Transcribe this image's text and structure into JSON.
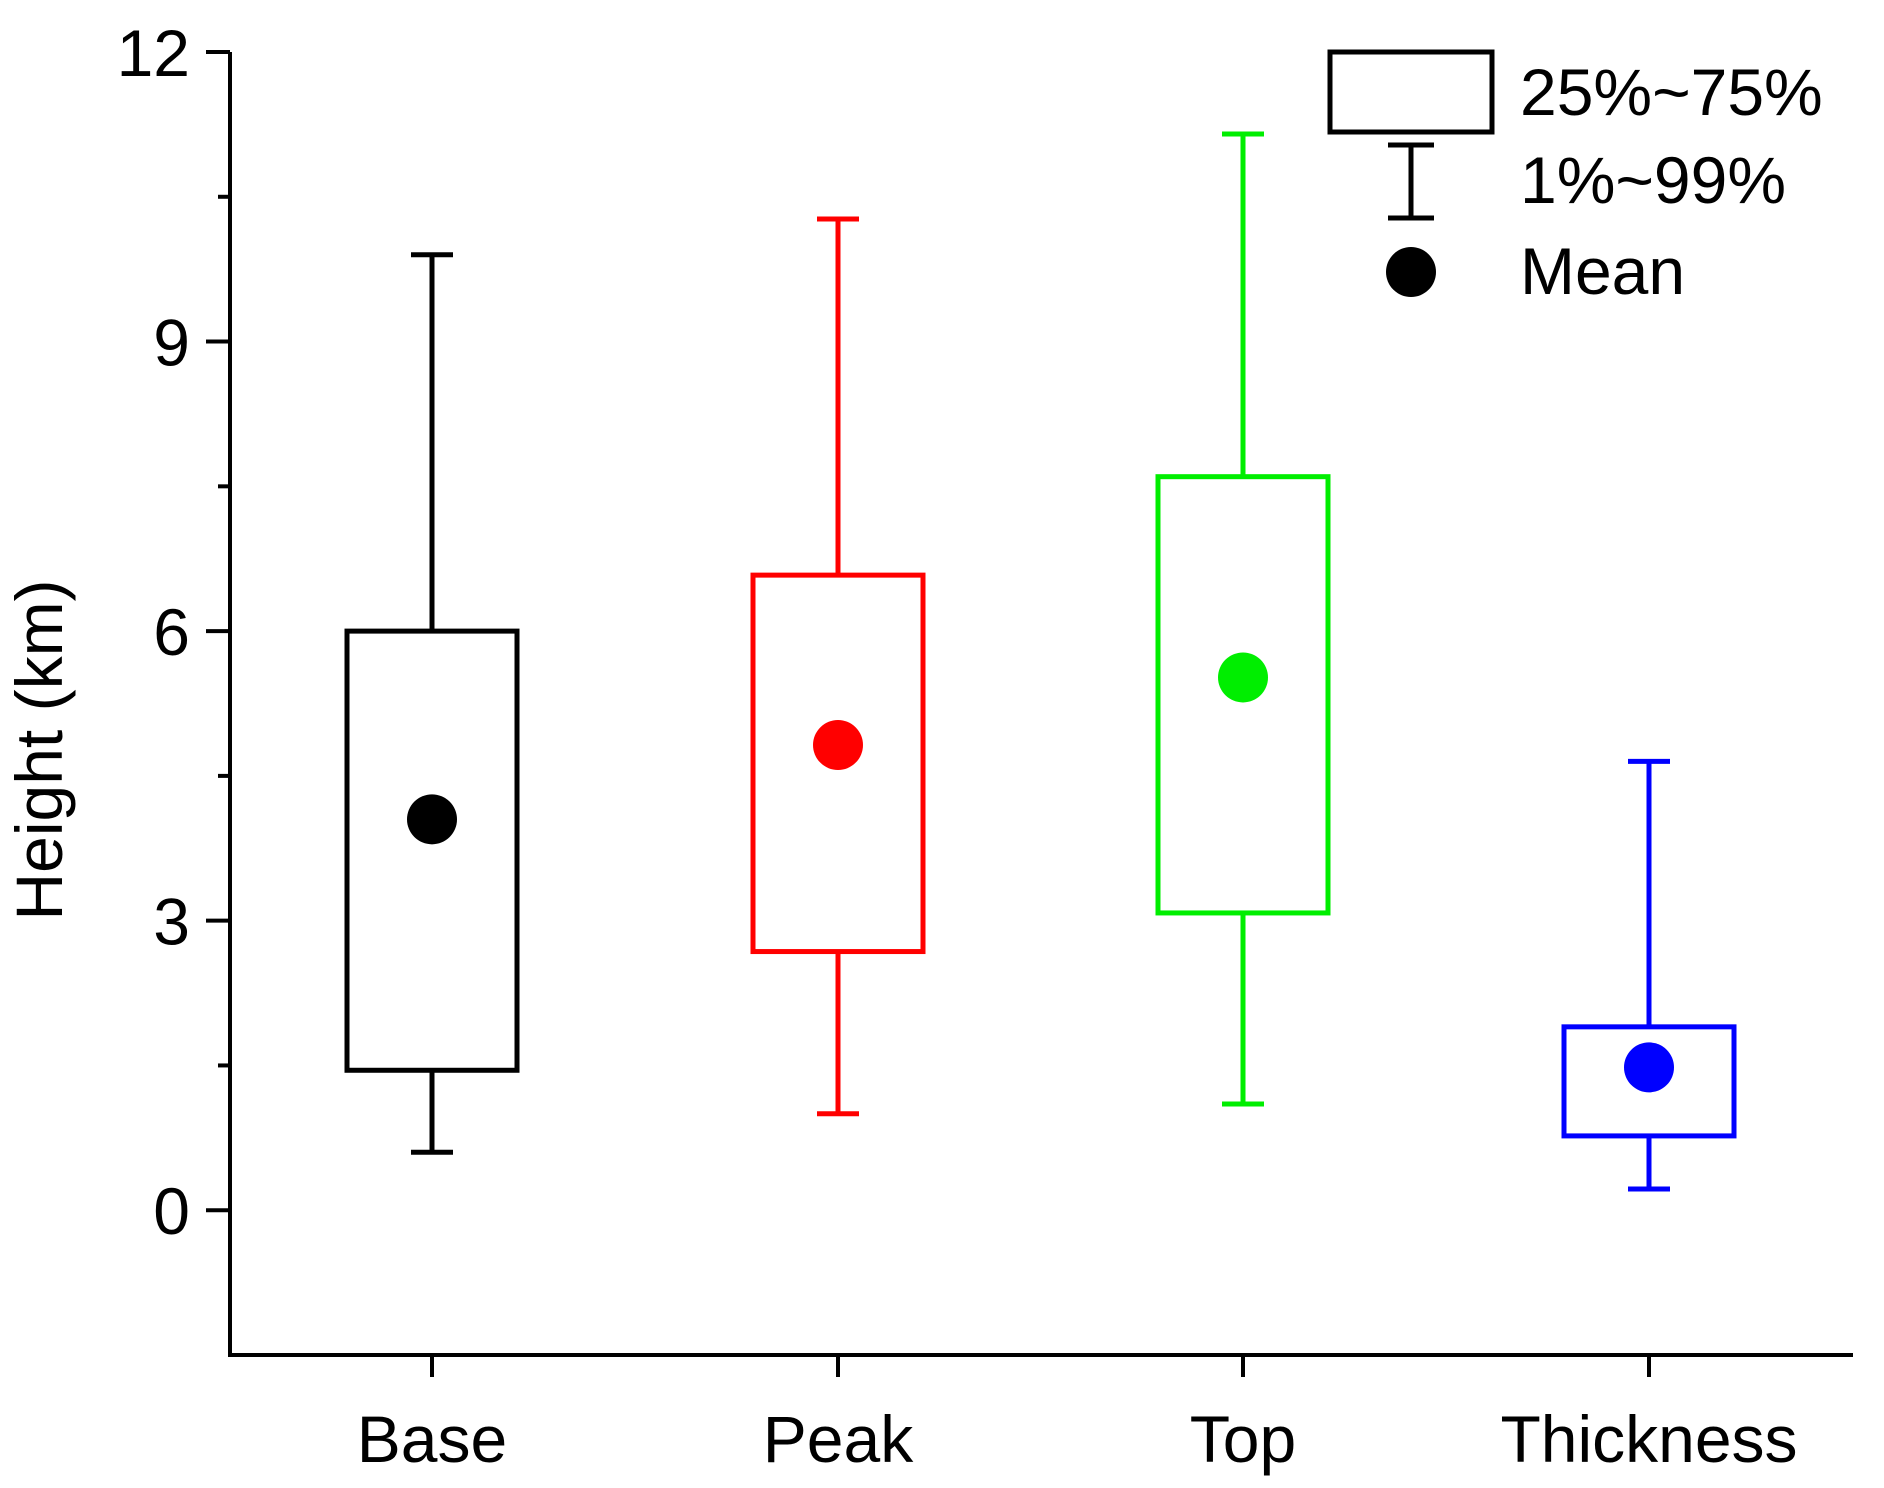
{
  "chart_data": {
    "type": "box",
    "title": "",
    "xlabel": "",
    "ylabel": "Height (km)",
    "ylim": [
      -1.5,
      12
    ],
    "yticks": [
      0,
      3,
      6,
      9,
      12
    ],
    "ytick_labels": [
      "0",
      "3",
      "6",
      "9",
      "12"
    ],
    "minor_tick_step": 1.5,
    "categories": [
      "Base",
      "Peak",
      "Top",
      "Thickness"
    ],
    "series": [
      {
        "name": "Base",
        "color": "#000000",
        "whisker_low": 0.6,
        "q1": 1.45,
        "q3": 6.0,
        "whisker_high": 9.9,
        "mean": 4.05
      },
      {
        "name": "Peak",
        "color": "#ff0000",
        "whisker_low": 1.0,
        "q1": 2.68,
        "q3": 6.58,
        "whisker_high": 10.27,
        "mean": 4.82
      },
      {
        "name": "Top",
        "color": "#00ee00",
        "whisker_low": 1.1,
        "q1": 3.08,
        "q3": 7.6,
        "whisker_high": 11.15,
        "mean": 5.52
      },
      {
        "name": "Thickness",
        "color": "#0000ff",
        "whisker_low": 0.22,
        "q1": 0.77,
        "q3": 1.9,
        "whisker_high": 4.65,
        "mean": 1.48
      }
    ],
    "legend": {
      "position": "top-right",
      "box_label": "25%~75%",
      "whisker_label": "1%~99%",
      "mean_label": "Mean"
    }
  }
}
